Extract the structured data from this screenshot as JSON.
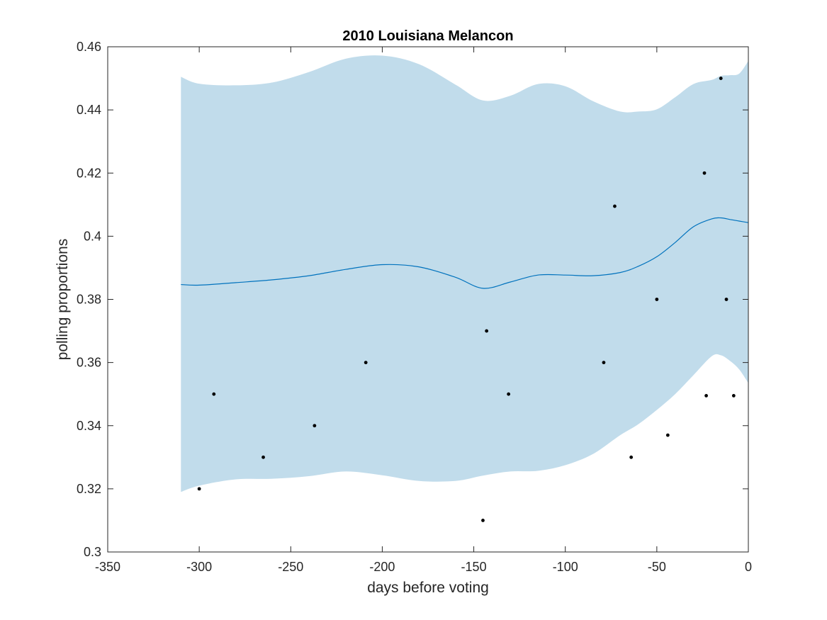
{
  "chart_data": {
    "type": "line",
    "title": "2010 Louisiana Melancon",
    "xlabel": "days before voting",
    "ylabel": "polling proportions",
    "xlim": [
      -350,
      0
    ],
    "ylim": [
      0.3,
      0.46
    ],
    "xticks": [
      -350,
      -300,
      -250,
      -200,
      -150,
      -100,
      -50,
      0
    ],
    "xtick_labels": [
      "-350",
      "-300",
      "-250",
      "-200",
      "-150",
      "-100",
      "-50",
      "0"
    ],
    "yticks": [
      0.3,
      0.32,
      0.34,
      0.36,
      0.38,
      0.4,
      0.42,
      0.44,
      0.46
    ],
    "ytick_labels": [
      "0.3",
      "0.32",
      "0.34",
      "0.36",
      "0.38",
      "0.4",
      "0.42",
      "0.44",
      "0.46"
    ],
    "grid": false,
    "colors": {
      "band": "#c1dceb",
      "line": "#0072bd",
      "points": "#000000",
      "axes": "#262626"
    },
    "band": {
      "x": [
        -310,
        -300,
        -280,
        -260,
        -240,
        -220,
        -200,
        -180,
        -160,
        -145,
        -130,
        -115,
        -100,
        -85,
        -70,
        -60,
        -50,
        -40,
        -30,
        -20,
        -15,
        -10,
        -5,
        0
      ],
      "upper": [
        0.4505,
        0.4483,
        0.4478,
        0.4487,
        0.452,
        0.4562,
        0.4572,
        0.4545,
        0.448,
        0.443,
        0.4445,
        0.4482,
        0.4475,
        0.4428,
        0.4395,
        0.4395,
        0.4402,
        0.444,
        0.4482,
        0.4495,
        0.4508,
        0.451,
        0.4515,
        0.4555
      ],
      "lower": [
        0.319,
        0.321,
        0.323,
        0.3232,
        0.324,
        0.3255,
        0.3243,
        0.3225,
        0.3225,
        0.3242,
        0.3255,
        0.3257,
        0.3275,
        0.331,
        0.337,
        0.3405,
        0.345,
        0.35,
        0.356,
        0.362,
        0.3623,
        0.3605,
        0.3578,
        0.3535
      ]
    },
    "series": [
      {
        "type": "line",
        "x": [
          -310,
          -300,
          -280,
          -260,
          -240,
          -220,
          -200,
          -180,
          -160,
          -145,
          -130,
          -115,
          -100,
          -85,
          -70,
          -60,
          -50,
          -40,
          -30,
          -20,
          -15,
          -10,
          -5,
          0
        ],
        "values": [
          0.3847,
          0.3845,
          0.3853,
          0.3862,
          0.3875,
          0.3895,
          0.391,
          0.3903,
          0.387,
          0.3835,
          0.3855,
          0.3877,
          0.3877,
          0.3875,
          0.3885,
          0.3905,
          0.3935,
          0.398,
          0.403,
          0.4055,
          0.4058,
          0.4053,
          0.4048,
          0.4043
        ]
      },
      {
        "type": "scatter",
        "x": [
          -300,
          -292,
          -265,
          -237,
          -209,
          -145,
          -143,
          -131,
          -79,
          -73,
          -64,
          -50,
          -44,
          -24,
          -23,
          -15,
          -12,
          -8
        ],
        "values": [
          0.32,
          0.35,
          0.33,
          0.34,
          0.36,
          0.31,
          0.37,
          0.35,
          0.36,
          0.4095,
          0.33,
          0.38,
          0.337,
          0.42,
          0.3495,
          0.45,
          0.38,
          0.3495
        ]
      }
    ]
  }
}
